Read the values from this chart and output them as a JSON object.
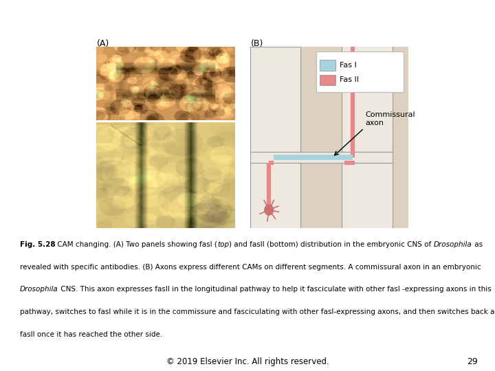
{
  "background_color": "#ffffff",
  "fig_width": 7.2,
  "fig_height": 5.4,
  "label_A": "(A)",
  "label_B": "(B)",
  "legend_fas1_color": "#a8d4e0",
  "legend_fas2_color": "#e88888",
  "legend_fas1_label": "Fas I",
  "legend_fas2_label": "Fas II",
  "commissural_label": "Commissural\naxon",
  "diagram_bg": "#ddd0be",
  "tract_color": "#ede8e0",
  "tract_border": "#999999",
  "axon_fas1_color": "#a8d4e0",
  "axon_fas2_color": "#e88888",
  "neuron_color": "#cc7070",
  "footer_text": "© 2019 Elsevier Inc. All rights reserved.",
  "footer_page": "29",
  "caption_line1_bold": "Fig. 5.28",
  "caption_line1_normal": " CAM changing. (A) Two panels showing fasI (",
  "caption_line1_italic": "top",
  "caption_line1_normal2": ") and fasII (bottom) distribution in the embryonic CNS of ",
  "caption_line1_italic2": "Drosophila",
  "caption_line1_normal3": " as",
  "caption_line2": "revealed with specific antibodies. (B) Axons express different CAMs on different segments. A commissural axon in an embryonic",
  "caption_line3_italic": "Drosophila",
  "caption_line3_normal": " CNS. This axon expresses fasII in the longitudinal pathway to help it fasciculate with other fasI -expressing axons in this",
  "caption_line4": "pathway, switches to fasI while it is in the commissure and fasciculating with other fasI-expressing axons, and then switches back again to",
  "caption_line5": "fasII once it has reached the other side.",
  "fontsize_caption": 7.5
}
